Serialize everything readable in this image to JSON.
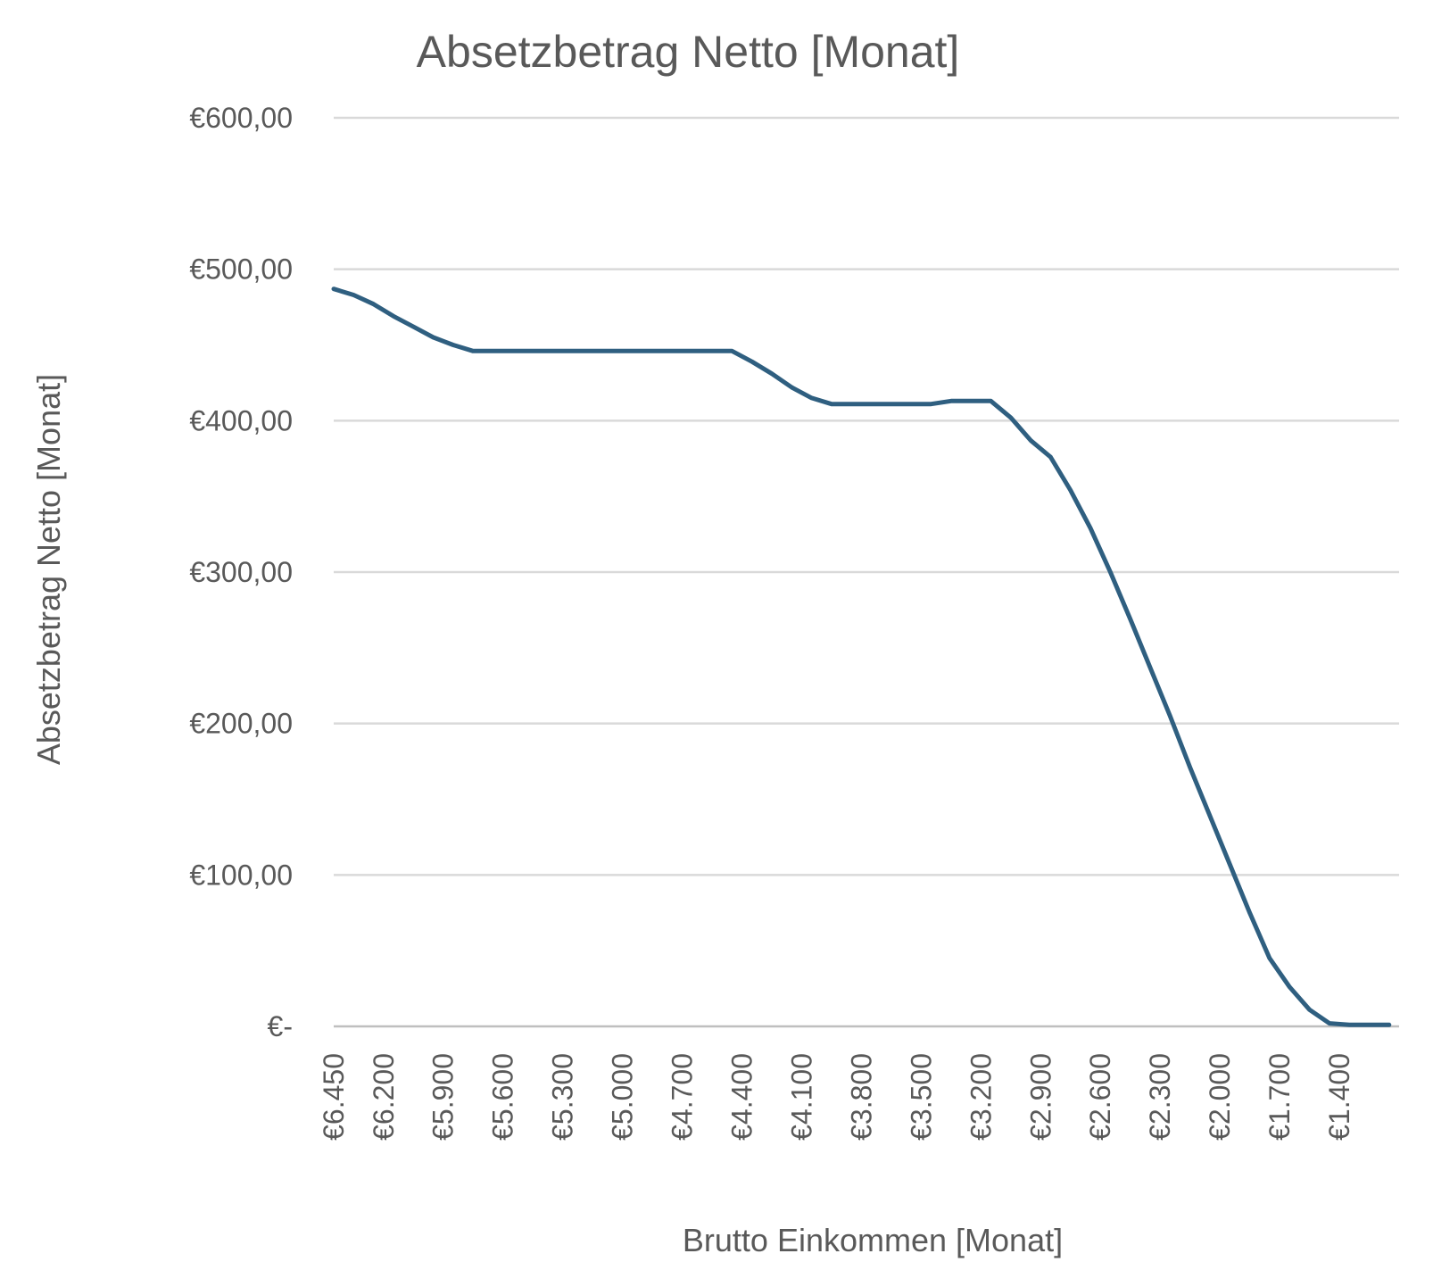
{
  "chart_data": {
    "type": "line",
    "title": "Absetzbetrag Netto [Monat]",
    "xlabel": "Brutto Einkommen [Monat]",
    "ylabel": "Absetzbetrag Netto [Monat]",
    "ylim": [
      0,
      600
    ],
    "yticks": [
      0,
      100,
      200,
      300,
      400,
      500,
      600
    ],
    "yticklabels": [
      "€-",
      "€100,00",
      "€200,00",
      "€300,00",
      "€400,00",
      "€500,00",
      "€600,00"
    ],
    "xticklabels": [
      "€6.450",
      "€6.200",
      "€5.900",
      "€5.600",
      "€5.300",
      "€5.000",
      "€4.700",
      "€4.400",
      "€4.100",
      "€3.800",
      "€3.500",
      "€3.200",
      "€2.900",
      "€2.600",
      "€2.300",
      "€2.000",
      "€1.700",
      "€1.400"
    ],
    "x_reversed": true,
    "grid": true,
    "legend": "none",
    "color": "#2f5f80",
    "series": [
      {
        "x": [
          6450,
          6350,
          6250,
          6150,
          6050,
          5950,
          5850,
          5750,
          5650,
          5550,
          5450,
          5350,
          5250,
          5150,
          5050,
          4950,
          4850,
          4750,
          4650,
          4550,
          4450,
          4350,
          4250,
          4150,
          4050,
          3950,
          3850,
          3750,
          3650,
          3550,
          3450,
          3350,
          3250,
          3150,
          3050,
          2950,
          2850,
          2750,
          2650,
          2550,
          2450,
          2350,
          2250,
          2150,
          2050,
          1950,
          1850,
          1750,
          1650,
          1550,
          1450,
          1350,
          1250,
          1150
        ],
        "values": [
          487,
          483,
          477,
          469,
          462,
          455,
          450,
          446,
          446,
          446,
          446,
          446,
          446,
          446,
          446,
          446,
          446,
          446,
          446,
          446,
          446,
          439,
          431,
          422,
          415,
          411,
          411,
          411,
          411,
          411,
          411,
          413,
          413,
          413,
          402,
          387,
          376,
          354,
          329,
          300,
          269,
          237,
          205,
          171,
          139,
          107,
          75,
          45,
          26,
          11,
          2,
          1,
          1,
          1
        ]
      }
    ]
  }
}
